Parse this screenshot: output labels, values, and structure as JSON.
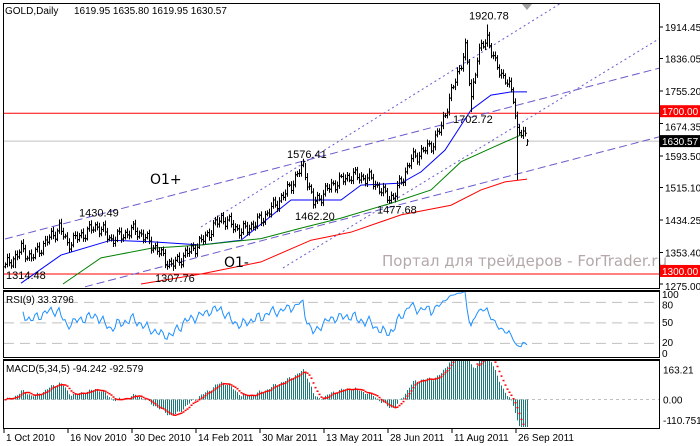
{
  "header": {
    "symbol": "GOLD,Daily",
    "ohlc": "1619.95 1635.80 1619.95 1630.57"
  },
  "watermark": "Портал для трейдеров - ForTrader.ru",
  "colors": {
    "bars": "#000000",
    "ma_fast": "#0000ff",
    "ma_mid": "#008000",
    "ma_slow": "#ff0000",
    "channel": "#6a5acd",
    "level": "#ff0000",
    "rsi": "#1e90ff",
    "macd_hist": "#1a7a7a",
    "macd_signal": "#ff0000"
  },
  "chart_data": {
    "type": "ohlc",
    "title": "GOLD,Daily",
    "ylim": [
      1275.0,
      1914.45
    ],
    "price_ticks": [
      "1914.45",
      "1836.05",
      "1755.20",
      "1674.35",
      "1593.50",
      "1515.10",
      "1434.25",
      "1353.40",
      "1275.00"
    ],
    "x_ticks": [
      {
        "bar": 0,
        "label": "1 Oct 2010"
      },
      {
        "bar": 32,
        "label": "16 Nov 2010"
      },
      {
        "bar": 64,
        "label": "30 Dec 2010"
      },
      {
        "bar": 96,
        "label": "14 Feb 2011"
      },
      {
        "bar": 128,
        "label": "30 Mar 2011"
      },
      {
        "bar": 160,
        "label": "13 May 2011"
      },
      {
        "bar": 192,
        "label": "28 Jun 2011"
      },
      {
        "bar": 224,
        "label": "11 Aug 2011"
      },
      {
        "bar": 256,
        "label": "26 Sep 2011"
      }
    ],
    "close_waypoints": [
      [
        0,
        1318
      ],
      [
        8,
        1360
      ],
      [
        13,
        1340
      ],
      [
        27,
        1415
      ],
      [
        31,
        1375
      ],
      [
        46,
        1420
      ],
      [
        53,
        1385
      ],
      [
        65,
        1410
      ],
      [
        73,
        1375
      ],
      [
        83,
        1320
      ],
      [
        98,
        1380
      ],
      [
        108,
        1440
      ],
      [
        118,
        1405
      ],
      [
        128,
        1435
      ],
      [
        140,
        1500
      ],
      [
        149,
        1570
      ],
      [
        154,
        1475
      ],
      [
        163,
        1520
      ],
      [
        173,
        1545
      ],
      [
        183,
        1535
      ],
      [
        190,
        1495
      ],
      [
        194,
        1490
      ],
      [
        203,
        1585
      ],
      [
        213,
        1620
      ],
      [
        218,
        1665
      ],
      [
        221,
        1720
      ],
      [
        225,
        1780
      ],
      [
        230,
        1860
      ],
      [
        233,
        1740
      ],
      [
        236,
        1840
      ],
      [
        241,
        1890
      ],
      [
        245,
        1820
      ],
      [
        250,
        1785
      ],
      [
        254,
        1740
      ],
      [
        256,
        1660
      ],
      [
        258,
        1650
      ],
      [
        261,
        1630.57
      ]
    ],
    "last_bar": {
      "open": 1619.95,
      "high": 1635.8,
      "low": 1619.95,
      "close": 1630.57
    },
    "extremes": [
      {
        "bar": 5,
        "type": "low",
        "value": 1314.48,
        "label": "1314.48"
      },
      {
        "bar": 46,
        "type": "high",
        "value": 1430.49,
        "label": "1430.49"
      },
      {
        "bar": 84,
        "type": "low",
        "value": 1307.76,
        "label": "1307.76"
      },
      {
        "bar": 150,
        "type": "high",
        "value": 1576.41,
        "label": "1576.41"
      },
      {
        "bar": 154,
        "type": "low",
        "value": 1462.2,
        "label": "1462.20"
      },
      {
        "bar": 195,
        "type": "low",
        "value": 1477.68,
        "label": "1477.68"
      },
      {
        "bar": 233,
        "type": "low",
        "value": 1702.72,
        "label": "1702.72"
      },
      {
        "bar": 241,
        "type": "high",
        "value": 1920.78,
        "label": "1920.78"
      },
      {
        "bar": 256,
        "type": "low",
        "value": 1534.0,
        "label": ""
      }
    ],
    "moving_averages": [
      {
        "name": "fast",
        "points": [
          [
            8,
            1277
          ],
          [
            28,
            1347
          ],
          [
            53,
            1384
          ],
          [
            73,
            1380
          ],
          [
            98,
            1372
          ],
          [
            118,
            1384
          ],
          [
            143,
            1484
          ],
          [
            168,
            1484
          ],
          [
            178,
            1521
          ],
          [
            198,
            1526
          ],
          [
            208,
            1554
          ],
          [
            220,
            1608
          ],
          [
            233,
            1708
          ],
          [
            243,
            1745
          ],
          [
            253,
            1753
          ],
          [
            261,
            1753
          ]
        ]
      },
      {
        "name": "mid",
        "points": [
          [
            29,
            1275
          ],
          [
            48,
            1340
          ],
          [
            73,
            1364
          ],
          [
            98,
            1372
          ],
          [
            128,
            1388
          ],
          [
            148,
            1414
          ],
          [
            168,
            1439
          ],
          [
            193,
            1476
          ],
          [
            213,
            1509
          ],
          [
            228,
            1579
          ],
          [
            243,
            1613
          ],
          [
            258,
            1646
          ]
        ]
      },
      {
        "name": "slow",
        "points": [
          [
            68,
            1275
          ],
          [
            98,
            1300
          ],
          [
            128,
            1330
          ],
          [
            153,
            1384
          ],
          [
            173,
            1404
          ],
          [
            198,
            1447
          ],
          [
            223,
            1471
          ],
          [
            238,
            1509
          ],
          [
            250,
            1529
          ],
          [
            261,
            1536
          ]
        ]
      }
    ],
    "channel_lines": [
      {
        "style": "dash",
        "from": [
          0,
          1387
        ],
        "to": [
          327,
          1812
        ]
      },
      {
        "style": "dash",
        "from": [
          40,
          1268
        ],
        "to": [
          327,
          1641
        ]
      },
      {
        "style": "dot",
        "from": [
          98,
          1417
        ],
        "to": [
          278,
          1974
        ]
      },
      {
        "style": "dot",
        "from": [
          139,
          1315
        ],
        "to": [
          327,
          1885
        ]
      }
    ],
    "levels": [
      {
        "value": 1700.0,
        "label": "1700.00"
      },
      {
        "value": 1300.0,
        "label": "1300.00"
      }
    ],
    "current_price": {
      "value": 1630.57,
      "label": "1630.57"
    },
    "annotations": [
      {
        "text": "O1+"
      },
      {
        "text": "O1-"
      }
    ]
  },
  "rsi": {
    "label": "RSI(9) 33.3796",
    "period": 9,
    "levels": [
      "100",
      "80",
      "50",
      "20",
      "0"
    ]
  },
  "macd": {
    "label": "MACD(5,34,5) -94.242 -92.579",
    "fast": 5,
    "slow": 34,
    "signal": 5,
    "ticks": [
      "163.21",
      "0.00",
      "-110.751"
    ]
  }
}
